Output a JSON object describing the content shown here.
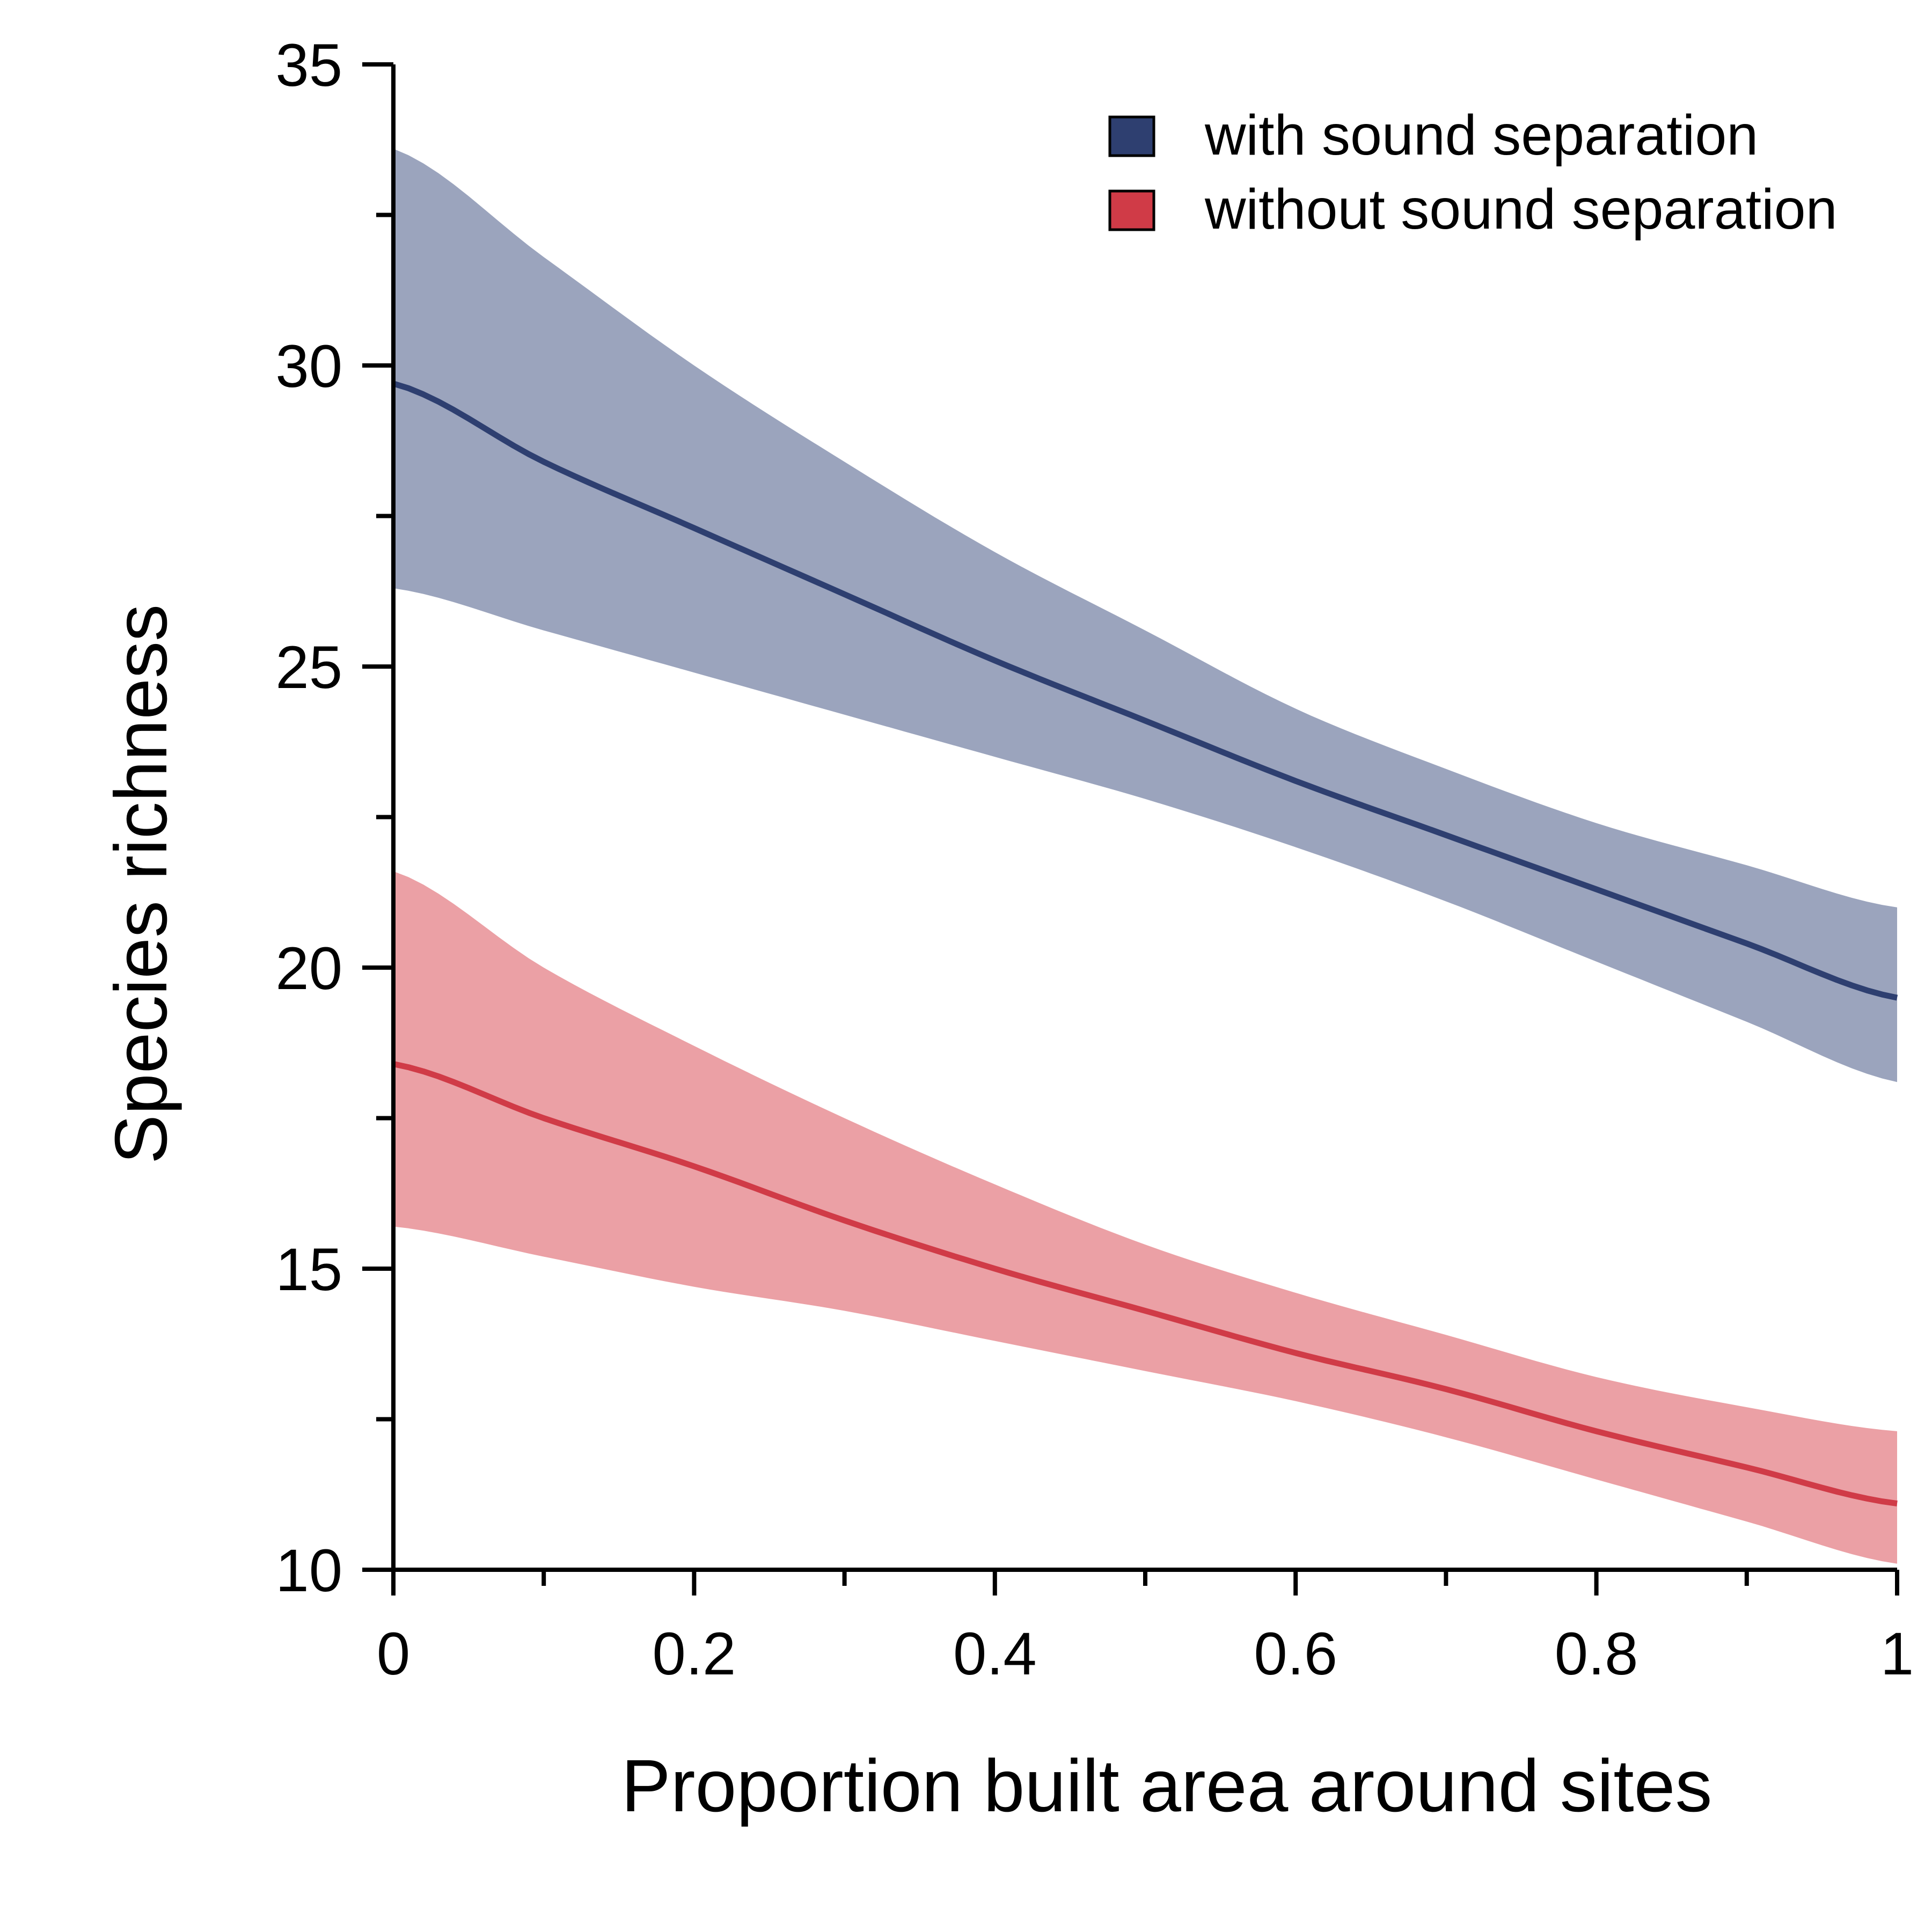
{
  "chart_data": {
    "type": "line",
    "title": "",
    "xlabel": "Proportion built area around sites",
    "ylabel": "Species richness",
    "xlim": [
      0,
      1
    ],
    "ylim": [
      10,
      35
    ],
    "grid": false,
    "legend_position": "top-right",
    "x_ticks": [
      "0",
      "0.2",
      "0.4",
      "0.6",
      "0.8",
      "1"
    ],
    "x_tick_values": [
      0,
      0.2,
      0.4,
      0.6,
      0.8,
      1
    ],
    "x_minor_tick_values": [
      0.1,
      0.3,
      0.5,
      0.7,
      0.9
    ],
    "y_ticks": [
      "10",
      "15",
      "20",
      "25",
      "30",
      "35"
    ],
    "y_tick_values": [
      10,
      15,
      20,
      25,
      30,
      35
    ],
    "y_minor_tick_values": [
      12.5,
      17.5,
      22.5,
      27.5,
      32.5
    ],
    "x": [
      0,
      0.1,
      0.2,
      0.3,
      0.4,
      0.5,
      0.6,
      0.7,
      0.8,
      0.9,
      1.0
    ],
    "series": [
      {
        "name": "with sound separation",
        "color": "#2e3f70",
        "band_color": "#9ba4bd",
        "values": [
          29.7,
          28.4,
          27.3,
          26.2,
          25.1,
          24.1,
          23.1,
          22.2,
          21.3,
          20.4,
          19.5
        ],
        "lower": [
          26.3,
          25.6,
          24.9,
          24.2,
          23.5,
          22.8,
          22.0,
          21.1,
          20.1,
          19.1,
          18.1
        ],
        "upper": [
          33.6,
          31.8,
          30.0,
          28.4,
          26.9,
          25.6,
          24.3,
          23.3,
          22.4,
          21.7,
          21.0
        ]
      },
      {
        "name": "without sound separation",
        "color": "#d03b47",
        "band_color": "#eba0a5",
        "values": [
          18.4,
          17.5,
          16.7,
          15.8,
          15.0,
          14.3,
          13.6,
          13.0,
          12.3,
          11.7,
          11.1
        ],
        "lower": [
          15.7,
          15.2,
          14.7,
          14.3,
          13.8,
          13.3,
          12.8,
          12.2,
          11.5,
          10.8,
          10.1
        ],
        "upper": [
          21.6,
          20.0,
          18.7,
          17.5,
          16.4,
          15.4,
          14.6,
          13.9,
          13.2,
          12.7,
          12.3
        ]
      }
    ]
  }
}
